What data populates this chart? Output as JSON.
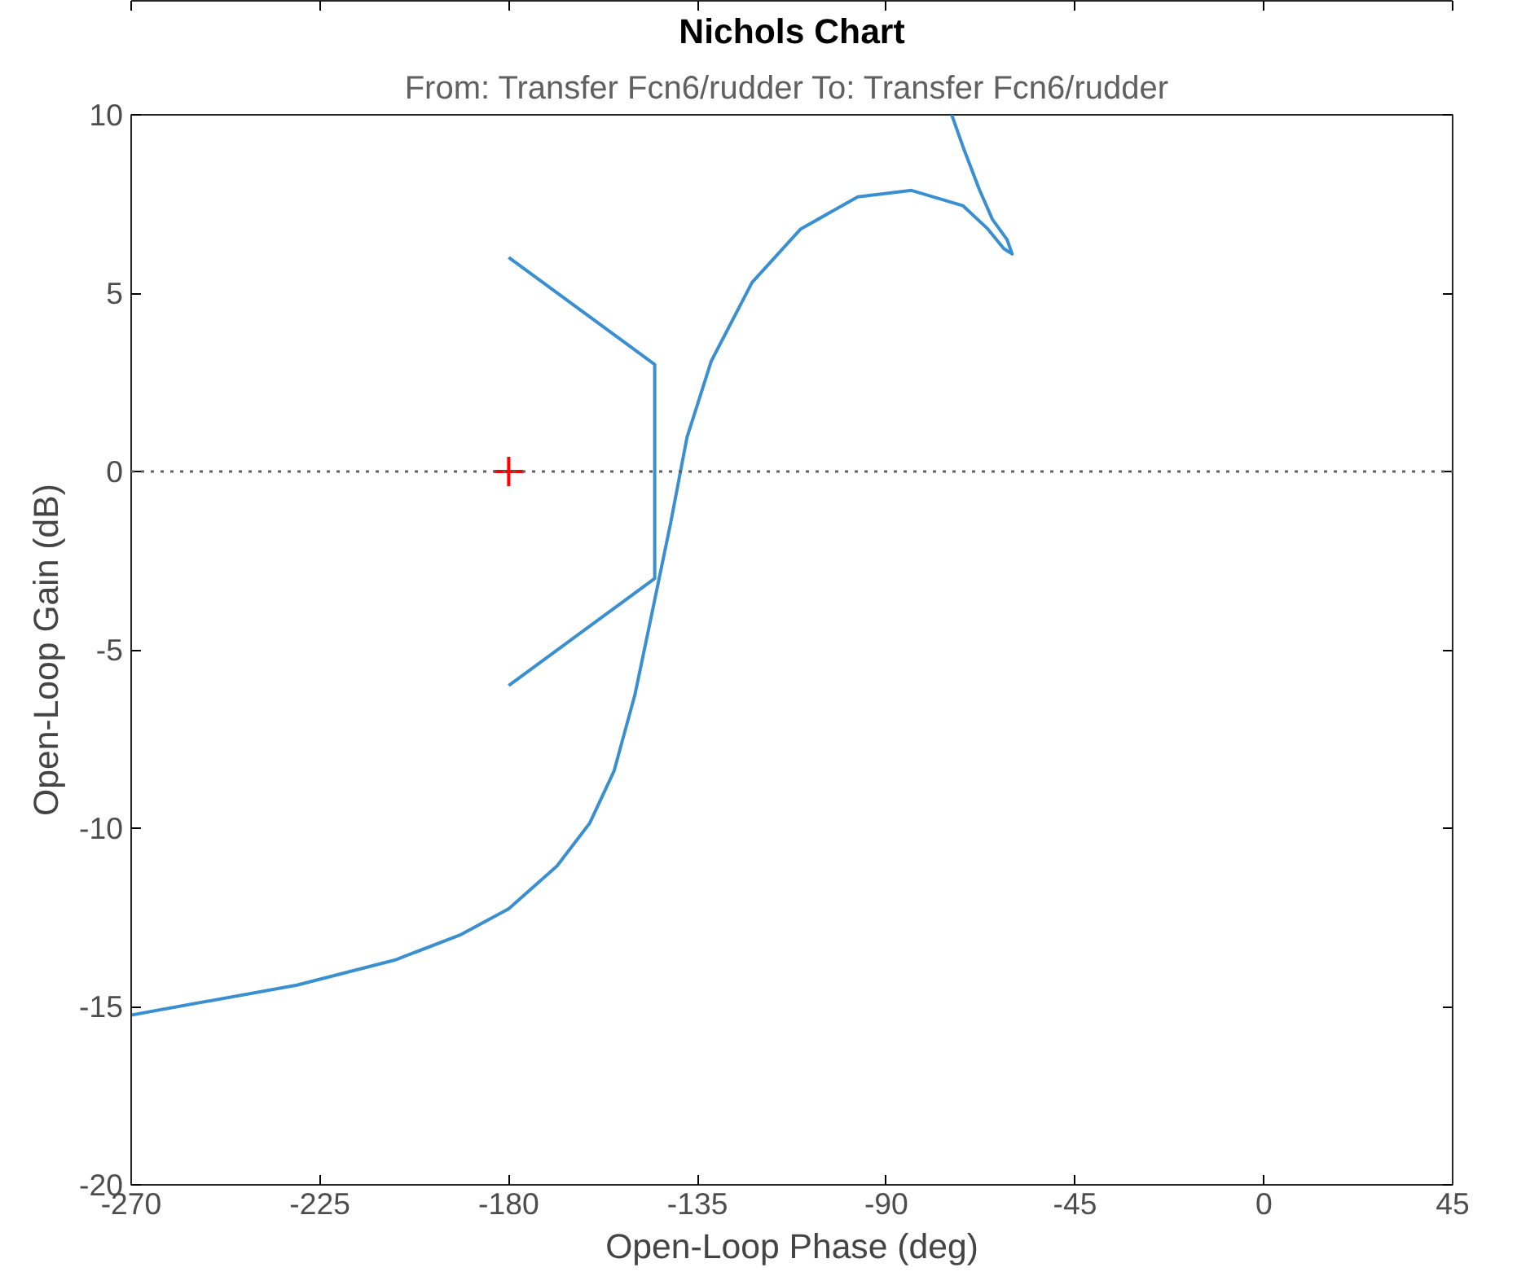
{
  "chart_data": {
    "type": "line",
    "title": "Nichols Chart",
    "subtitle": "From: Transfer Fcn6/rudder  To: Transfer Fcn6/rudder",
    "xlabel": "Open-Loop Phase (deg)",
    "ylabel": "Open-Loop Gain (dB)",
    "xlim": [
      -270,
      45
    ],
    "ylim": [
      -20,
      10
    ],
    "xticks": [
      -270,
      -225,
      -180,
      -135,
      -90,
      -45,
      0,
      45
    ],
    "yticks": [
      -20,
      -15,
      -10,
      -5,
      0,
      5,
      10
    ],
    "ref_lines": [
      {
        "axis": "y",
        "value": 0,
        "line_style": "dotted",
        "color": "#606060"
      }
    ],
    "series": [
      {
        "color": "#3a8fd0",
        "x": [
          -270,
          -230.5,
          -207.2,
          -191.7,
          -180,
          -168.5,
          -160.7,
          -154.9,
          -149.9,
          -145.2,
          -141.4,
          -137.5,
          -131.7,
          -122,
          -110.4,
          -96.8,
          -84,
          -71.7,
          -65.8,
          -62,
          -60,
          -61.2,
          -64.7,
          -67.8,
          -71.7,
          -74.4
        ],
        "values": [
          -15.24,
          -14.4,
          -13.7,
          -13.0,
          -12.26,
          -11.06,
          -9.86,
          -8.4,
          -6.25,
          -3.6,
          -1.44,
          0.96,
          3.1,
          5.3,
          6.8,
          7.7,
          7.88,
          7.45,
          6.8,
          6.25,
          6.1,
          6.5,
          7.07,
          7.9,
          9.1,
          10
        ]
      },
      {
        "color": "#3a8fd0",
        "x": [
          -180,
          -145.2,
          -145.2,
          -180
        ],
        "values": [
          6,
          3,
          -3,
          -6
        ]
      },
      {
        "type": "scatter",
        "marker": "cross",
        "color": "#ff0000",
        "x": [
          -180
        ],
        "values": [
          0
        ]
      }
    ]
  }
}
